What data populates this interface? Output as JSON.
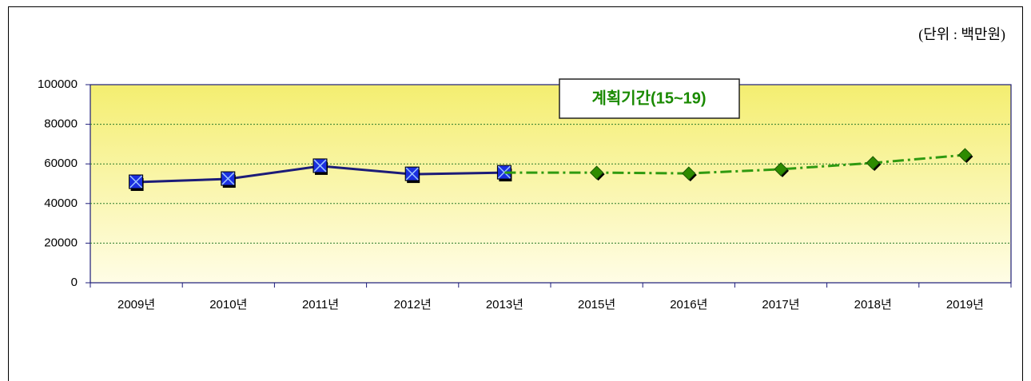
{
  "chart_data": {
    "type": "line",
    "unit_label": "(단위 : 백만원)",
    "annotation": "계획기간(15~19)",
    "categories": [
      "2009년",
      "2010년",
      "2011년",
      "2012년",
      "2013년",
      "2015년",
      "2016년",
      "2017년",
      "2018년",
      "2019년"
    ],
    "series": [
      {
        "color": "#1c1c78",
        "marker_color": "#1a2fe0",
        "values": [
          50800,
          52400,
          58900,
          54800,
          55600,
          null,
          null,
          null,
          null,
          null
        ]
      },
      {
        "color": "#2f9a10",
        "marker_color": "#2e8b00",
        "dash": true,
        "values": [
          null,
          null,
          null,
          null,
          55600,
          55600,
          55200,
          57300,
          60500,
          64500
        ]
      }
    ],
    "ylim": [
      0,
      100000
    ],
    "yticks": [
      0,
      20000,
      40000,
      60000,
      80000,
      100000
    ],
    "grid": true
  }
}
